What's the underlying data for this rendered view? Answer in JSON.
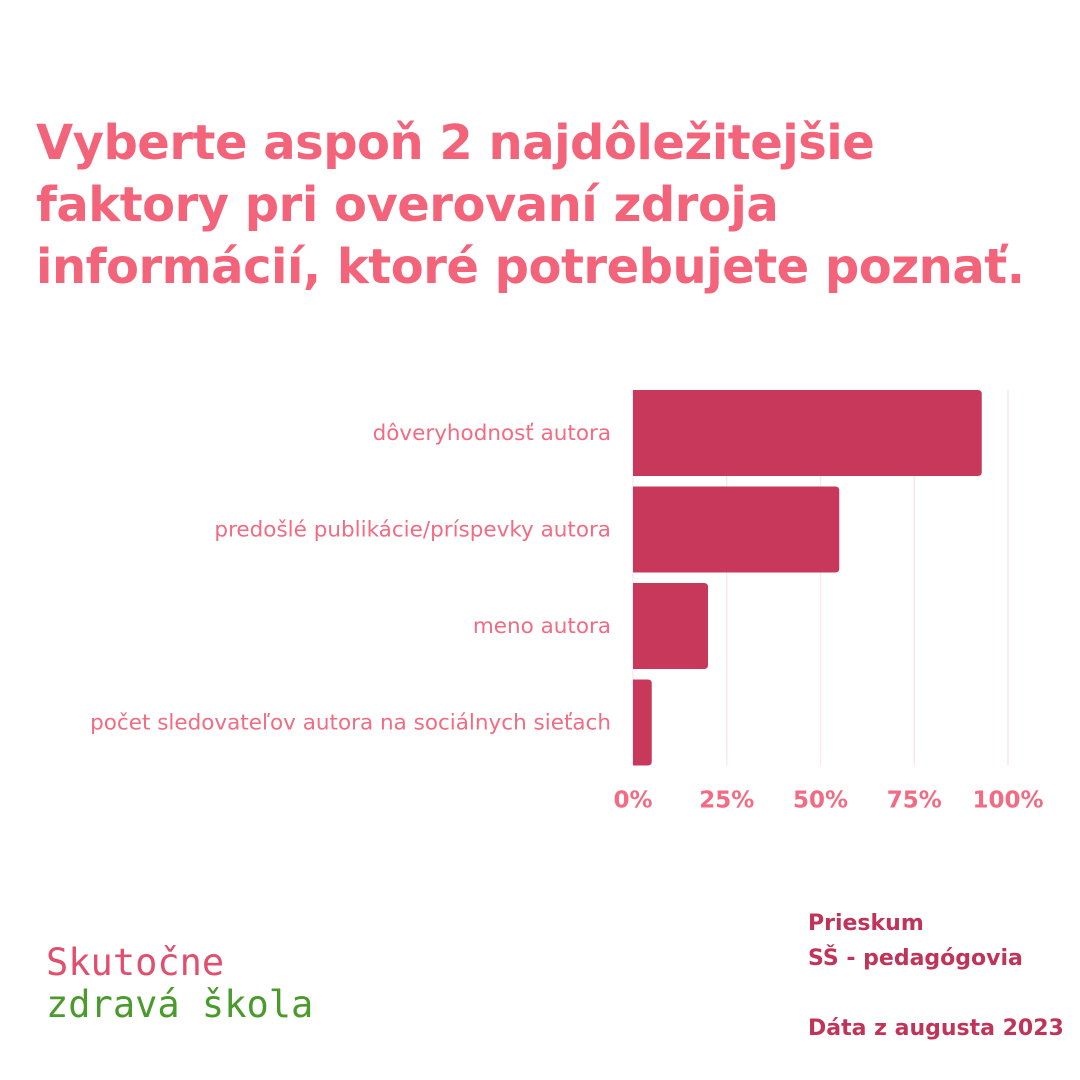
{
  "title_lines": [
    "Vyberte aspoň 2 najdôležitejšie",
    "faktory pri overovaní zdroja",
    "informácií, ktoré potrebujete poznať."
  ],
  "chart_data": {
    "type": "bar",
    "orientation": "horizontal",
    "categories": [
      "dôveryhodnosť autora",
      "predošlé publikácie/príspevky autora",
      "meno autora",
      "počet sledovateľov autora na sociálnych sieťach"
    ],
    "values": [
      93,
      55,
      20,
      5
    ],
    "x_ticks": [
      "0%",
      "25%",
      "50%",
      "75%",
      "100%"
    ],
    "xlim": [
      0,
      100
    ],
    "unit": "%",
    "grid": true,
    "bar_color": "#c8385a"
  },
  "logo": {
    "line1": "Skutočne",
    "line2": "zdravá škola"
  },
  "survey": {
    "line1": "Prieskum",
    "line2": "SŠ - pedagógovia",
    "line3": "Dáta z augusta 2023"
  },
  "colors": {
    "title": "#f3637a",
    "label": "#f26b83",
    "bar": "#c8385a",
    "logo_pink": "#e0506e",
    "logo_green": "#4a9a2c",
    "survey": "#c0345a",
    "grid": "#fbe8ec"
  }
}
